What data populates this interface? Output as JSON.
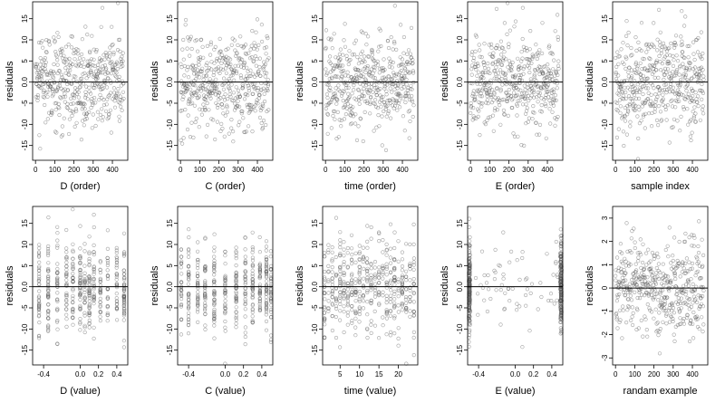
{
  "chart_data": [
    {
      "type": "scatter",
      "xlabel": "D (order)",
      "ylabel": "residuals",
      "xlim": [
        -15,
        480
      ],
      "ylim": [
        -18.5,
        19
      ],
      "xticks": [
        "0",
        "100",
        "200",
        "300",
        "400"
      ],
      "yticks": [
        "-15",
        "-10",
        "-5",
        "0.0",
        "5",
        "10",
        "15"
      ],
      "ytick_values": [
        -15,
        -10,
        -5,
        0,
        5,
        10,
        15
      ],
      "xtick_values": [
        0,
        100,
        200,
        300,
        400
      ],
      "dist": "order",
      "n": 460,
      "seed": 11,
      "spread": 5.5,
      "hline": 0
    },
    {
      "type": "scatter",
      "xlabel": "C (order)",
      "ylabel": "residuals",
      "xlim": [
        -15,
        480
      ],
      "ylim": [
        -18.5,
        19
      ],
      "xticks": [
        "0",
        "100",
        "200",
        "300",
        "400"
      ],
      "yticks": [
        "-15",
        "-10",
        "-5",
        "0.0",
        "5",
        "10",
        "15"
      ],
      "ytick_values": [
        -15,
        -10,
        -5,
        0,
        5,
        10,
        15
      ],
      "xtick_values": [
        0,
        100,
        200,
        300,
        400
      ],
      "dist": "order",
      "n": 460,
      "seed": 12,
      "spread": 5.5,
      "hline": 0
    },
    {
      "type": "scatter",
      "xlabel": "time (order)",
      "ylabel": "residuals",
      "xlim": [
        -15,
        480
      ],
      "ylim": [
        -18.5,
        19
      ],
      "xticks": [
        "0",
        "100",
        "200",
        "300",
        "400"
      ],
      "yticks": [
        "-15",
        "-10",
        "-5",
        "0.0",
        "5",
        "10",
        "15"
      ],
      "ytick_values": [
        -15,
        -10,
        -5,
        0,
        5,
        10,
        15
      ],
      "xtick_values": [
        0,
        100,
        200,
        300,
        400
      ],
      "dist": "order",
      "n": 460,
      "seed": 13,
      "spread": 5.5,
      "hline": 0
    },
    {
      "type": "scatter",
      "xlabel": "E (order)",
      "ylabel": "residuals",
      "xlim": [
        -15,
        480
      ],
      "ylim": [
        -18.5,
        19
      ],
      "xticks": [
        "0",
        "100",
        "200",
        "300",
        "400"
      ],
      "yticks": [
        "-15",
        "-10",
        "-5",
        "0.0",
        "5",
        "10",
        "15"
      ],
      "ytick_values": [
        -15,
        -10,
        -5,
        0,
        5,
        10,
        15
      ],
      "xtick_values": [
        0,
        100,
        200,
        300,
        400
      ],
      "dist": "order",
      "n": 460,
      "seed": 14,
      "spread": 5.5,
      "hline": 0
    },
    {
      "type": "scatter",
      "xlabel": "sample index",
      "ylabel": "residuals",
      "xlim": [
        -15,
        480
      ],
      "ylim": [
        -18.5,
        19
      ],
      "xticks": [
        "0",
        "100",
        "200",
        "300",
        "400"
      ],
      "yticks": [
        "-15",
        "-10",
        "-5",
        "0.0",
        "5",
        "10",
        "15"
      ],
      "ytick_values": [
        -15,
        -10,
        -5,
        0,
        5,
        10,
        15
      ],
      "xtick_values": [
        0,
        100,
        200,
        300,
        400
      ],
      "dist": "order",
      "n": 460,
      "seed": 15,
      "spread": 5.5,
      "hline": 0
    },
    {
      "type": "scatter",
      "xlabel": "D (value)",
      "ylabel": "residuals",
      "xlim": [
        -0.52,
        0.52
      ],
      "ylim": [
        -18.5,
        19
      ],
      "xticks": [
        "-0.4",
        "0.0",
        "0.2",
        "0.4"
      ],
      "yticks": [
        "-15",
        "-10",
        "-5",
        "0.0",
        "5",
        "10",
        "15"
      ],
      "ytick_values": [
        -15,
        -10,
        -5,
        0,
        5,
        10,
        15
      ],
      "xtick_values": [
        -0.4,
        0.0,
        0.2,
        0.4
      ],
      "dist": "cols",
      "cols": [
        -0.45,
        -0.35,
        -0.25,
        -0.15,
        -0.08,
        0.0,
        0.05,
        0.1,
        0.15,
        0.22,
        0.3,
        0.4,
        0.48
      ],
      "n": 460,
      "seed": 16,
      "spread": 5.5,
      "hline": 0
    },
    {
      "type": "scatter",
      "xlabel": "C (value)",
      "ylabel": "residuals",
      "xlim": [
        -0.52,
        0.52
      ],
      "ylim": [
        -18.5,
        19
      ],
      "xticks": [
        "-0.4",
        "0.0",
        "0.2",
        "0.4"
      ],
      "yticks": [
        "-15",
        "-10",
        "-5",
        "0.0",
        "5",
        "10",
        "15"
      ],
      "ytick_values": [
        -15,
        -10,
        -5,
        0,
        5,
        10,
        15
      ],
      "xtick_values": [
        -0.4,
        0.0,
        0.2,
        0.4
      ],
      "dist": "cols",
      "cols": [
        -0.48,
        -0.4,
        -0.3,
        -0.22,
        -0.12,
        0.0,
        0.12,
        0.22,
        0.3,
        0.38,
        0.45,
        0.5
      ],
      "n": 460,
      "seed": 17,
      "spread": 5.5,
      "hline": 0
    },
    {
      "type": "scatter",
      "xlabel": "time (value)",
      "ylabel": "residuals",
      "xlim": [
        0.5,
        25
      ],
      "ylim": [
        -18.5,
        19
      ],
      "xticks": [
        "5",
        "10",
        "15",
        "20"
      ],
      "yticks": [
        "-15",
        "-10",
        "-5",
        "0.0",
        "5",
        "10",
        "15"
      ],
      "ytick_values": [
        -15,
        -10,
        -5,
        0,
        5,
        10,
        15
      ],
      "xtick_values": [
        5,
        10,
        15,
        20
      ],
      "dist": "cols",
      "cols": [
        1,
        2,
        3,
        4,
        5,
        6,
        7,
        8,
        9,
        10,
        11,
        12,
        13,
        14,
        15,
        16,
        17,
        18,
        19,
        20,
        21,
        22,
        23,
        24
      ],
      "n": 460,
      "seed": 18,
      "spread": 5.5,
      "hline": 0
    },
    {
      "type": "scatter",
      "xlabel": "E (value)",
      "ylabel": "residuals",
      "xlim": [
        -0.52,
        0.52
      ],
      "ylim": [
        -18.5,
        19
      ],
      "xticks": [
        "-0.4",
        "0.0",
        "0.2",
        "0.4"
      ],
      "yticks": [
        "-15",
        "-10",
        "-5",
        "0.0",
        "5",
        "10",
        "15"
      ],
      "ytick_values": [
        -15,
        -10,
        -5,
        0,
        5,
        10,
        15
      ],
      "xtick_values": [
        -0.4,
        0.0,
        0.2,
        0.4
      ],
      "dist": "ends",
      "cols": [
        -0.5,
        0.5
      ],
      "n": 420,
      "seed": 19,
      "spread": 5.5,
      "hline": 0
    },
    {
      "type": "scatter",
      "xlabel": "randam example",
      "ylabel": "residuals",
      "xlim": [
        -15,
        480
      ],
      "ylim": [
        -3.3,
        3.5
      ],
      "xticks": [
        "0",
        "100",
        "200",
        "300",
        "400"
      ],
      "yticks": [
        "-3",
        "-2",
        "-1",
        "0",
        "1",
        "2",
        "3"
      ],
      "ytick_values": [
        -3,
        -2,
        -1,
        0,
        1,
        2,
        3
      ],
      "xtick_values": [
        0,
        100,
        200,
        300,
        400
      ],
      "dist": "order",
      "n": 460,
      "seed": 20,
      "spread": 1.0,
      "hline": 0
    }
  ]
}
